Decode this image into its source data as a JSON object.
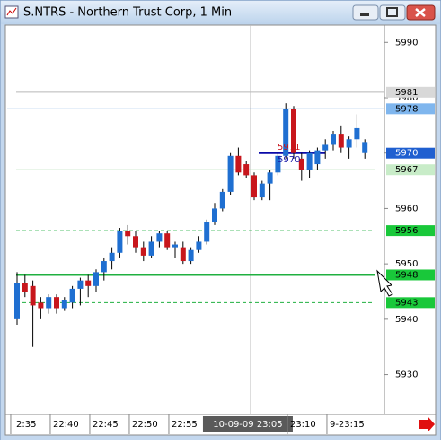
{
  "chart_data": {
    "type": "candlestick",
    "title": "S.NTRS - Northern Trust Corp, 1 Min",
    "categories": [
      null,
      null,
      null,
      null,
      null,
      null,
      null,
      null,
      null,
      null,
      null,
      null,
      null,
      null,
      null,
      null,
      null,
      null,
      null,
      null,
      null,
      null,
      null,
      null,
      null,
      null,
      null,
      null,
      null,
      null,
      null,
      null,
      null,
      null,
      null,
      null,
      null,
      null,
      null,
      null,
      null,
      null,
      null,
      null,
      null
    ],
    "open": [
      5940,
      5946.5,
      5946,
      5943,
      5942,
      5944,
      5942,
      5943,
      5945.5,
      5947,
      5946,
      5948.5,
      5950.5,
      5952,
      5956,
      5955,
      5953,
      5951.5,
      5954,
      5955.5,
      5953,
      5953,
      5950.5,
      5952.5,
      5954,
      5957.5,
      5960,
      5963,
      5969.5,
      5968,
      5966,
      5962,
      5964.5,
      5966.5,
      5969.5,
      5978,
      5969,
      5967,
      5968,
      5970.5,
      5971.5,
      5973.5,
      5971,
      5972.5,
      5970
    ],
    "high": [
      5948.5,
      5948,
      5947,
      5944,
      5944.5,
      5944.5,
      5944,
      5946,
      5947.5,
      5948,
      5949,
      5951,
      5953,
      5956.5,
      5957,
      5956,
      5954,
      5955,
      5956,
      5956,
      5954,
      5954,
      5953,
      5955,
      5958,
      5961,
      5963.5,
      5970,
      5971,
      5968.5,
      5966.5,
      5965,
      5967,
      5970,
      5979,
      5978.5,
      5970,
      5970.5,
      5971,
      5972.5,
      5974,
      5975,
      5973,
      5977,
      5972.5
    ],
    "low": [
      5939,
      5944,
      5935,
      5940,
      5941,
      5941,
      5941.5,
      5942,
      5942.5,
      5944,
      5945,
      5947,
      5949,
      5951,
      5953.5,
      5952,
      5950.5,
      5951,
      5953,
      5952.5,
      5951,
      5950,
      5950,
      5952,
      5953.5,
      5957,
      5959.5,
      5962.5,
      5966,
      5965.5,
      5961.5,
      5961.5,
      5961.5,
      5966,
      5969,
      5969,
      5965,
      5965.5,
      5967,
      5969,
      5970.5,
      5970,
      5969,
      5971,
      5969
    ],
    "close": [
      5946.5,
      5945,
      5942.5,
      5942,
      5944,
      5942,
      5943.5,
      5945.5,
      5947,
      5946,
      5948.5,
      5950.5,
      5952,
      5956,
      5955,
      5953,
      5951.5,
      5954,
      5955.5,
      5953,
      5953.5,
      5950.5,
      5952.5,
      5954,
      5957.5,
      5960,
      5963,
      5969.5,
      5966.5,
      5966,
      5962,
      5964.5,
      5966.5,
      5969.5,
      5978,
      5970,
      5967,
      5970,
      5970.5,
      5971.5,
      5973.5,
      5971,
      5972.5,
      5974.5,
      5972
    ],
    "up_color": "#1f6fd1",
    "down_color": "#c8161c",
    "ylim": [
      5922.8,
      5992.8
    ],
    "yticks": [
      5930,
      5940,
      5950,
      5960,
      5970,
      5980,
      5990
    ],
    "xticks": [
      {
        "value": -0.8,
        "label": "2:35"
      },
      {
        "value": 4.2,
        "label": "22:40"
      },
      {
        "value": 9.2,
        "label": "22:45"
      },
      {
        "value": 14.2,
        "label": "22:50"
      },
      {
        "value": 19.2,
        "label": "22:55"
      },
      {
        "value": 29.2,
        "label": "10-09-09  23:05"
      },
      {
        "value": 34.2,
        "label": "23:10"
      },
      {
        "value": 39.2,
        "label": "9-23:15"
      }
    ],
    "levels": [
      {
        "value": 5981,
        "color": "#b8b8b8",
        "style": "solid",
        "box": "#d8d8d8"
      },
      {
        "value": 5978,
        "color": "#3b7fd0",
        "style": "solid",
        "box": "#7fb6ee"
      },
      {
        "value": 5970,
        "color": "#0a0aa8",
        "style": "short",
        "box": "#1f5fd0"
      },
      {
        "value": 5967,
        "color": "#a8d8a8",
        "style": "solid",
        "box": "#c8ecc8"
      },
      {
        "value": 5956,
        "color": "#20b040",
        "style": "dashed",
        "box": "#19c83a"
      },
      {
        "value": 5948,
        "color": "#20b040",
        "style": "thick",
        "box": "#19c83a"
      },
      {
        "value": 5943,
        "color": "#20b040",
        "style": "dashed",
        "box": "#19c83a"
      }
    ],
    "annotations": [
      {
        "text": "5971",
        "color": "#c8161c"
      },
      {
        "text": "5970",
        "color": "#1a1aa8"
      }
    ]
  }
}
